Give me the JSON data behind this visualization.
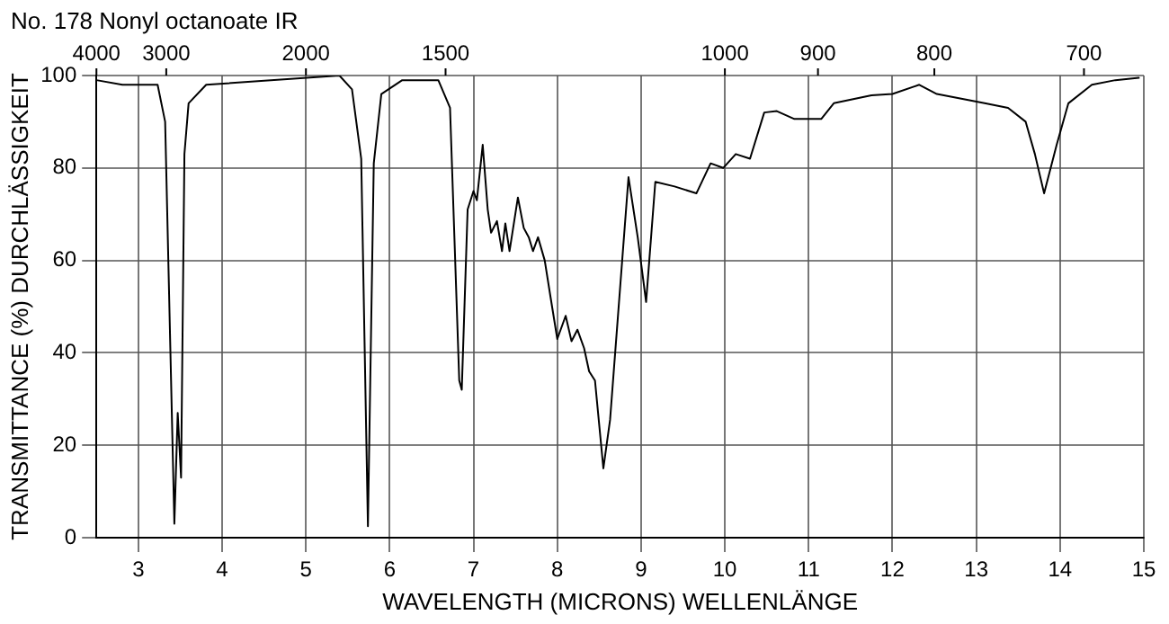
{
  "chart_data": {
    "type": "line",
    "title": "No. 178 Nonyl octanoate IR",
    "xlabel": "WAVELENGTH (MICRONS) WELLENLÄNGE",
    "ylabel": "TRANSMITTANCE (%) DURCHLÄSSIGKEIT",
    "x": [
      2.5,
      2.81,
      3.23,
      3.32,
      3.43,
      3.47,
      3.51,
      3.55,
      3.6,
      3.81,
      5.4,
      5.55,
      5.66,
      5.74,
      5.81,
      5.9,
      6.15,
      6.58,
      6.72,
      6.83,
      6.86,
      6.93,
      7.0,
      7.04,
      7.11,
      7.17,
      7.21,
      7.28,
      7.34,
      7.38,
      7.43,
      7.53,
      7.6,
      7.66,
      7.71,
      7.77,
      7.85,
      7.92,
      8.0,
      8.1,
      8.17,
      8.24,
      8.32,
      8.38,
      8.45,
      8.55,
      8.63,
      8.85,
      8.96,
      9.06,
      9.17,
      9.4,
      9.66,
      9.83,
      9.98,
      10.13,
      10.3,
      10.47,
      10.62,
      10.83,
      11.15,
      11.3,
      11.75,
      12.0,
      12.32,
      12.53,
      13.1,
      13.38,
      13.59,
      13.7,
      13.81,
      13.96,
      14.1,
      14.38,
      14.66,
      14.94
    ],
    "series": [
      {
        "color": "#000000",
        "values": [
          99,
          98,
          98,
          90,
          3,
          27,
          13,
          83,
          94,
          98,
          100,
          97,
          82,
          2.5,
          81,
          96,
          99,
          99,
          93,
          34,
          32,
          71,
          75,
          73,
          85,
          71,
          66,
          68.5,
          62,
          68,
          62,
          73.6,
          67,
          65,
          62,
          65,
          60,
          52,
          43,
          48,
          42.5,
          45,
          41,
          36,
          34,
          15,
          25.5,
          78,
          65,
          51,
          77,
          76,
          74.5,
          81,
          80,
          83,
          82,
          92,
          92.3,
          90.6,
          90.6,
          94,
          95.7,
          96,
          98,
          96,
          94,
          93,
          90,
          83,
          74.5,
          85,
          94,
          98,
          99,
          99.5
        ]
      }
    ],
    "xlim": [
      2.5,
      15
    ],
    "xticks": [
      3,
      4,
      5,
      6,
      7,
      8,
      9,
      10,
      11,
      12,
      13,
      14,
      15
    ],
    "annotations": [
      "4000",
      "3000",
      "2000",
      "1500",
      "1000",
      "900",
      "800",
      "700"
    ],
    "ylim": [
      0,
      100
    ],
    "yticks": [
      0,
      20,
      40,
      60,
      80,
      100
    ],
    "grid": true,
    "legend": false,
    "marker": "none",
    "line_style": "solid"
  }
}
